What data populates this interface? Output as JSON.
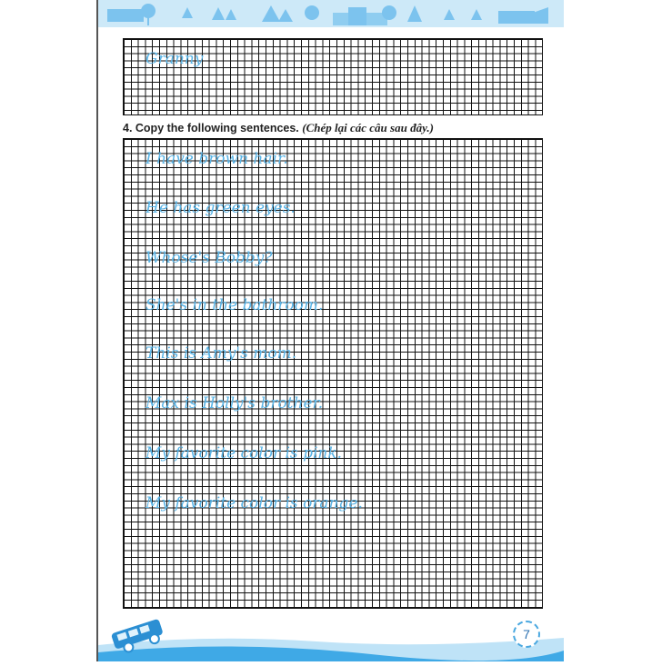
{
  "top_exercise": {
    "sample_word": "Granny"
  },
  "exercise4": {
    "title": "4. Copy the following sentences.",
    "translation": "(Chép lại các câu sau đây.)",
    "sentences": [
      "I have brown hair.",
      "He has green eyes.",
      "Whose's Bobby?",
      "She's in the bathroom.",
      "This is Amy's mom.",
      "Max is Holly's brother.",
      "My favorite color is pink.",
      "My favorite color is orange."
    ]
  },
  "footer": {
    "page_number": "7"
  },
  "colors": {
    "header": "#cde9f8",
    "handwriting": "#5ab4e6",
    "accent": "#4aa8e0"
  }
}
